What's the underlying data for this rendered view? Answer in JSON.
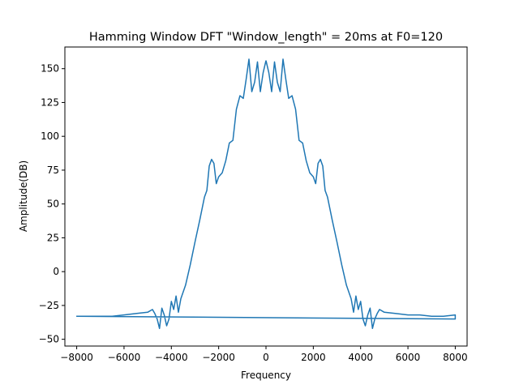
{
  "chart_data": {
    "type": "line",
    "title": "Hamming Window DFT \"Window_length\" = 20ms at F0=120",
    "xlabel": "Frequency",
    "ylabel": "Amplitude(DB)",
    "xlim": [
      -8500,
      8500
    ],
    "ylim": [
      -55,
      166
    ],
    "xticks": [
      -8000,
      -6000,
      -4000,
      -2000,
      0,
      2000,
      4000,
      6000,
      8000
    ],
    "yticks": [
      -50,
      -25,
      0,
      25,
      50,
      75,
      100,
      125,
      150
    ],
    "grid": false,
    "legend": "none",
    "series_color": "#1f77b4",
    "series": [
      {
        "x": [
          0,
          120,
          240,
          360,
          480,
          600,
          720,
          840,
          960,
          1100,
          1250,
          1400,
          1550,
          1700,
          1850,
          2000,
          2100,
          2200,
          2300,
          2400,
          2500,
          2600,
          2800,
          3000,
          3200,
          3400,
          3600,
          3700,
          3800,
          3900,
          4000,
          4100,
          4200,
          4300,
          4400,
          4500,
          4600,
          4700,
          4800,
          5000,
          5500,
          6000,
          6500,
          7000,
          7500,
          8000,
          8000,
          -8000,
          -8000,
          -7500,
          -7000,
          -6500,
          -6000,
          -5500,
          -5000,
          -4800,
          -4700,
          -4600,
          -4500,
          -4400,
          -4300,
          -4200,
          -4100,
          -4000,
          -3900,
          -3800,
          -3700,
          -3600,
          -3400,
          -3200,
          -3000,
          -2800,
          -2600,
          -2500,
          -2400,
          -2300,
          -2200,
          -2100,
          -2000,
          -1850,
          -1700,
          -1550,
          -1400,
          -1250,
          -1100,
          -960,
          -840,
          -720,
          -600,
          -480,
          -360,
          -240,
          -120,
          0
        ],
        "y": [
          156,
          147,
          133,
          155,
          140,
          133,
          157,
          142,
          128,
          130,
          120,
          97,
          95,
          82,
          73,
          70,
          65,
          80,
          83,
          78,
          60,
          55,
          38,
          22,
          5,
          -10,
          -20,
          -30,
          -18,
          -28,
          -22,
          -35,
          -40,
          -32,
          -27,
          -42,
          -35,
          -31,
          -28,
          -30,
          -31,
          -32,
          -32,
          -33,
          -33,
          -32,
          -35,
          -33,
          -33,
          -33,
          -33,
          -33,
          -32,
          -31,
          -30,
          -28,
          -31,
          -35,
          -42,
          -27,
          -32,
          -40,
          -35,
          -22,
          -28,
          -18,
          -30,
          -20,
          -10,
          5,
          22,
          38,
          55,
          60,
          78,
          83,
          80,
          65,
          70,
          73,
          82,
          95,
          97,
          120,
          130,
          128,
          142,
          157,
          133,
          140,
          155,
          133,
          147,
          156
        ]
      }
    ]
  }
}
